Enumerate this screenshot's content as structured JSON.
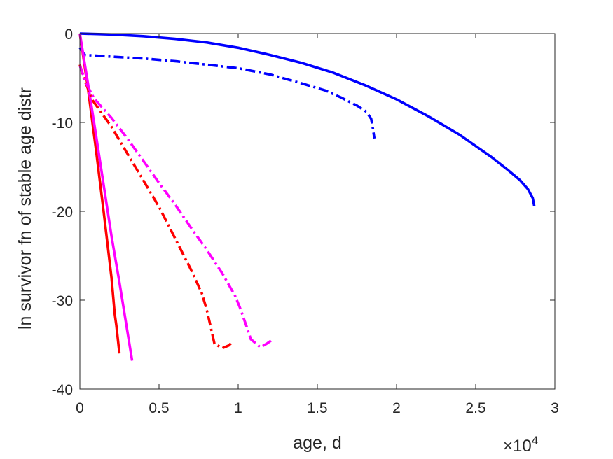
{
  "chart_data": {
    "type": "line",
    "title": "",
    "xlabel": "age, d",
    "ylabel": "ln survivor fn of stable age distr",
    "x_exponent_label": "×10",
    "x_exponent_power": "4",
    "x_tick_scale": 10000,
    "xlim": [
      0,
      30000
    ],
    "ylim": [
      -40,
      0
    ],
    "x_ticks": [
      0,
      5000,
      10000,
      15000,
      20000,
      25000,
      30000
    ],
    "x_tick_labels": [
      "0",
      "0.5",
      "1",
      "1.5",
      "2",
      "2.5",
      "3"
    ],
    "y_ticks": [
      0,
      -10,
      -20,
      -30,
      -40
    ],
    "y_tick_labels": [
      "0",
      "-10",
      "-20",
      "-30",
      "-40"
    ],
    "grid": false,
    "series": [
      {
        "color": "#0000ff",
        "dash": "solid",
        "points": [
          [
            0,
            0
          ],
          [
            2000,
            -0.1
          ],
          [
            4000,
            -0.3
          ],
          [
            6000,
            -0.6
          ],
          [
            8000,
            -1.0
          ],
          [
            10000,
            -1.6
          ],
          [
            12000,
            -2.4
          ],
          [
            14000,
            -3.3
          ],
          [
            16000,
            -4.4
          ],
          [
            18000,
            -5.8
          ],
          [
            20000,
            -7.4
          ],
          [
            22000,
            -9.3
          ],
          [
            24000,
            -11.4
          ],
          [
            26000,
            -13.9
          ],
          [
            27000,
            -15.3
          ],
          [
            27800,
            -16.5
          ],
          [
            28300,
            -17.5
          ],
          [
            28600,
            -18.5
          ],
          [
            28700,
            -19.4
          ]
        ]
      },
      {
        "color": "#0000ff",
        "dash": "dashdot",
        "points": [
          [
            0,
            -1.6
          ],
          [
            300,
            -2.4
          ],
          [
            2000,
            -2.6
          ],
          [
            4000,
            -2.8
          ],
          [
            6000,
            -3.1
          ],
          [
            8000,
            -3.5
          ],
          [
            10000,
            -3.9
          ],
          [
            12000,
            -4.6
          ],
          [
            14000,
            -5.6
          ],
          [
            15500,
            -6.4
          ],
          [
            16500,
            -7.2
          ],
          [
            17500,
            -8.1
          ],
          [
            18100,
            -8.8
          ],
          [
            18400,
            -9.6
          ],
          [
            18500,
            -10.6
          ],
          [
            18600,
            -11.8
          ]
        ]
      },
      {
        "color": "#ff0000",
        "dash": "solid",
        "points": [
          [
            0,
            0
          ],
          [
            500,
            -6
          ],
          [
            1000,
            -12.8
          ],
          [
            1500,
            -20
          ],
          [
            2000,
            -27.5
          ],
          [
            2200,
            -31.5
          ],
          [
            2300,
            -32.8
          ],
          [
            2500,
            -36
          ]
        ]
      },
      {
        "color": "#ff00ff",
        "dash": "solid",
        "points": [
          [
            0,
            0
          ],
          [
            500,
            -5.5
          ],
          [
            1000,
            -11.2
          ],
          [
            1500,
            -17
          ],
          [
            2000,
            -22.8
          ],
          [
            2500,
            -28
          ],
          [
            3000,
            -33.5
          ],
          [
            3300,
            -36.8
          ]
        ]
      },
      {
        "color": "#ff0000",
        "dash": "dashdot",
        "points": [
          [
            0,
            -3.5
          ],
          [
            200,
            -4.8
          ],
          [
            800,
            -7.5
          ],
          [
            2000,
            -10.5
          ],
          [
            3000,
            -13.5
          ],
          [
            4000,
            -16.5
          ],
          [
            5000,
            -19.5
          ],
          [
            6000,
            -23
          ],
          [
            7000,
            -26.5
          ],
          [
            7700,
            -29.2
          ],
          [
            8000,
            -31
          ],
          [
            8200,
            -32.5
          ],
          [
            8500,
            -34.9
          ],
          [
            9000,
            -35.4
          ],
          [
            9400,
            -35.1
          ],
          [
            9700,
            -34.6
          ]
        ]
      },
      {
        "color": "#ff00ff",
        "dash": "dashdot",
        "points": [
          [
            0,
            -3.6
          ],
          [
            400,
            -5.6
          ],
          [
            900,
            -7.3
          ],
          [
            2000,
            -9.5
          ],
          [
            3000,
            -11.8
          ],
          [
            4000,
            -14.3
          ],
          [
            5000,
            -16.8
          ],
          [
            6000,
            -19.2
          ],
          [
            7000,
            -21.8
          ],
          [
            8000,
            -24.3
          ],
          [
            9000,
            -27
          ],
          [
            9800,
            -29.5
          ],
          [
            10100,
            -30.8
          ],
          [
            10500,
            -32.8
          ],
          [
            10800,
            -34.4
          ],
          [
            11400,
            -35.3
          ],
          [
            11800,
            -34.9
          ],
          [
            12200,
            -34.4
          ]
        ]
      }
    ]
  }
}
